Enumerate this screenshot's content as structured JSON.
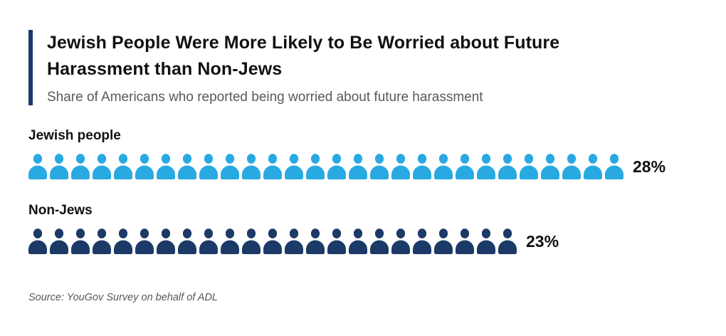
{
  "header": {
    "title": "Jewish People Were More Likely to Be Worried about Future Harassment than Non-Jews",
    "subtitle": "Share of Americans who reported being worried about future harassment"
  },
  "chart_data": {
    "type": "bar",
    "variant": "pictogram",
    "title": "Jewish People Were More Likely to Be Worried about Future Harassment than Non-Jews",
    "subtitle": "Share of Americans who reported being worried about future harassment",
    "unit": "percent",
    "icon": "person-icon",
    "icon_unit_value": 1,
    "categories": [
      "Jewish people",
      "Non-Jews"
    ],
    "values": [
      28,
      23
    ],
    "series": [
      {
        "name": "Jewish people",
        "value": 28,
        "value_label": "28%",
        "icon_count": 28,
        "color": "#29a9e1"
      },
      {
        "name": "Non-Jews",
        "value": 23,
        "value_label": "23%",
        "icon_count": 23,
        "color": "#1b3a67"
      }
    ],
    "xlim": [
      0,
      100
    ],
    "grid": false,
    "legend": "none",
    "source": "Source: YouGov Survey on behalf of ADL"
  },
  "footer": {
    "source": "Source: YouGov Survey on behalf of ADL"
  },
  "colors": {
    "accent_bar": "#1b3a67",
    "title": "#111111",
    "subtitle": "#58595b",
    "source": "#58585a",
    "background": "#ffffff"
  }
}
